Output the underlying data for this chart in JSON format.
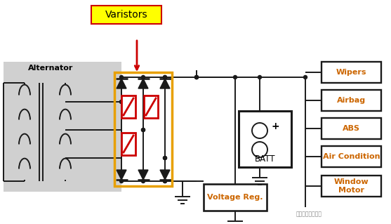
{
  "bg_color": "#ffffff",
  "varistors_label": "Varistors",
  "varistors_label_bg": "#ffff00",
  "alternator_label": "Alternator",
  "batt_label": "BATT",
  "voltage_reg_label": "Voltage Reg.",
  "load_labels": [
    "Wipers",
    "Airbag",
    "ABS",
    "Air Condition",
    "Window\nMotor"
  ],
  "watermark": "上海雷卡电磁兼容",
  "line_color": "#1a1a1a",
  "varistor_color": "#cc0000",
  "arrow_color": "#cc0000",
  "orange_rect_color": "#e8a000",
  "gray_bg_color": "#d0d0d0",
  "load_text_color": "#cc6600"
}
